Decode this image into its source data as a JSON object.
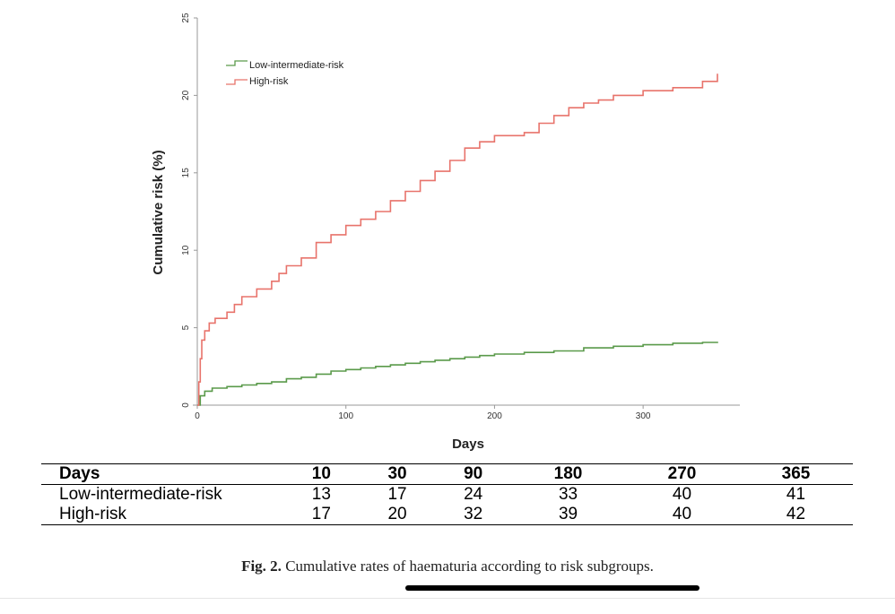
{
  "chart_data": {
    "type": "line",
    "xlabel": "Days",
    "ylabel": "Cumulative risk (%)",
    "xlim": [
      0,
      365
    ],
    "ylim": [
      0,
      25
    ],
    "x_ticks": [
      0,
      100,
      200,
      300
    ],
    "y_ticks": [
      0,
      5,
      10,
      15,
      20,
      25
    ],
    "legend_position": "top-left",
    "grid": false,
    "series": [
      {
        "name": "Low-intermediate-risk",
        "color": "#5a9a4a",
        "x": [
          0,
          2,
          5,
          10,
          20,
          30,
          40,
          50,
          60,
          70,
          80,
          90,
          100,
          110,
          120,
          130,
          140,
          150,
          160,
          170,
          180,
          190,
          200,
          220,
          240,
          260,
          280,
          300,
          320,
          340,
          350
        ],
        "y": [
          0,
          0.6,
          0.9,
          1.1,
          1.2,
          1.3,
          1.4,
          1.5,
          1.7,
          1.8,
          2.0,
          2.2,
          2.3,
          2.4,
          2.5,
          2.6,
          2.7,
          2.8,
          2.9,
          3.0,
          3.1,
          3.2,
          3.3,
          3.4,
          3.5,
          3.7,
          3.8,
          3.9,
          4.0,
          4.05,
          4.1
        ]
      },
      {
        "name": "High-risk",
        "color": "#e8736b",
        "x": [
          0,
          1,
          2,
          3,
          5,
          8,
          12,
          20,
          25,
          30,
          40,
          50,
          55,
          60,
          70,
          80,
          90,
          100,
          110,
          120,
          130,
          140,
          150,
          160,
          170,
          180,
          190,
          200,
          220,
          230,
          240,
          250,
          260,
          270,
          280,
          300,
          320,
          340,
          350
        ],
        "y": [
          0,
          1.5,
          3.0,
          4.2,
          4.8,
          5.3,
          5.6,
          6.0,
          6.5,
          7.0,
          7.5,
          8.0,
          8.5,
          9.0,
          9.5,
          10.5,
          11.0,
          11.6,
          12.0,
          12.5,
          13.2,
          13.8,
          14.5,
          15.1,
          15.8,
          16.6,
          17.0,
          17.4,
          17.6,
          18.2,
          18.7,
          19.2,
          19.5,
          19.7,
          20.0,
          20.3,
          20.5,
          20.9,
          21.4
        ]
      }
    ]
  },
  "table": {
    "header": [
      "Days",
      "10",
      "30",
      "90",
      "180",
      "270",
      "365"
    ],
    "rows": [
      [
        "Low-intermediate-risk",
        "13",
        "17",
        "24",
        "33",
        "40",
        "41"
      ],
      [
        "High-risk",
        "17",
        "20",
        "32",
        "39",
        "40",
        "42"
      ]
    ]
  },
  "caption": {
    "label": "Fig. 2.",
    "text": "Cumulative rates of haematuria according to risk subgroups."
  }
}
